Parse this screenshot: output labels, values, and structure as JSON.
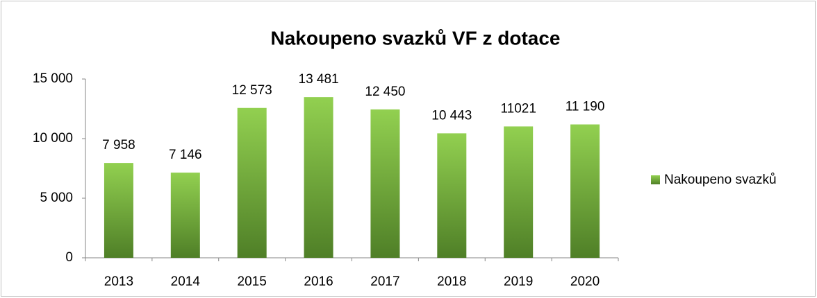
{
  "chart_data": {
    "type": "bar",
    "title": "Nakoupeno svazků VF z dotace",
    "categories": [
      "2013",
      "2014",
      "2015",
      "2016",
      "2017",
      "2018",
      "2019",
      "2020"
    ],
    "series": [
      {
        "name": "Nakoupeno svazků",
        "color": "#92d050",
        "values": [
          7958,
          7146,
          12573,
          13481,
          12450,
          10443,
          11021,
          11190
        ],
        "value_labels": [
          "7 958",
          "7 146",
          "12 573",
          "13 481",
          "12 450",
          "10 443",
          "11021",
          "11 190"
        ]
      }
    ],
    "ylim": [
      0,
      15000
    ],
    "yticks": [
      0,
      {
        "value": 5000,
        "label": "5 000"
      },
      {
        "value": 10000,
        "label": "10 000"
      },
      {
        "value": 15000,
        "label": "15 000"
      }
    ],
    "grid": false,
    "legend": "right"
  }
}
